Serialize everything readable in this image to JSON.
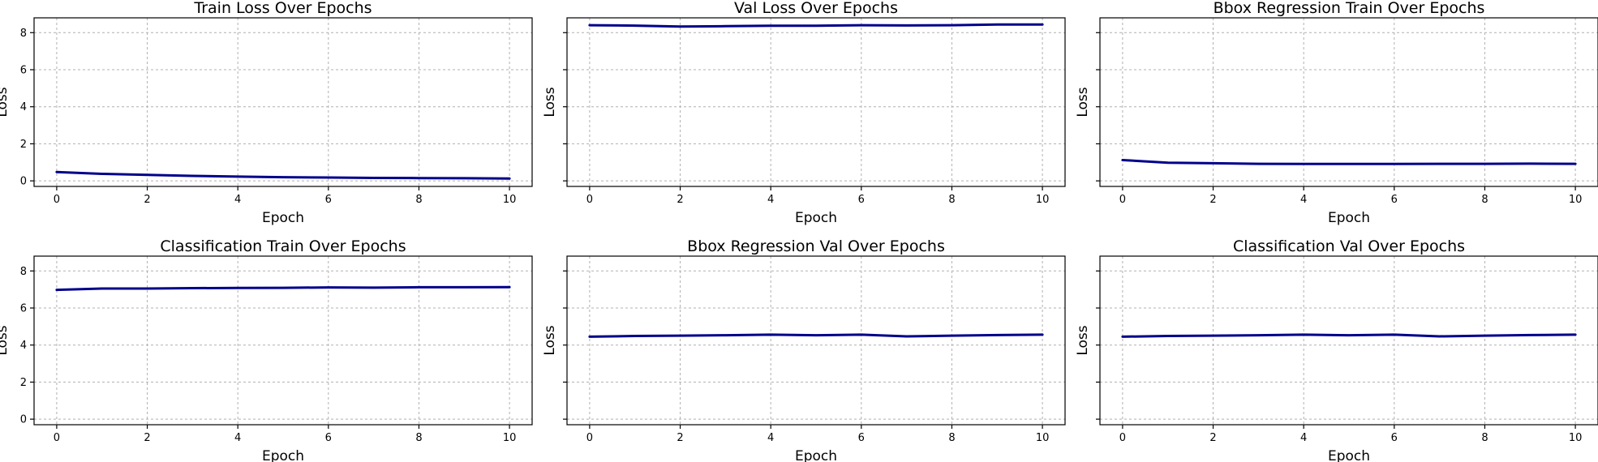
{
  "chart_data": [
    {
      "type": "line",
      "title": "Train Loss Over Epochs",
      "xlabel": "Epoch",
      "ylabel": "Loss",
      "xlim": [
        -0.5,
        10.5
      ],
      "ylim": [
        -0.3,
        8.8
      ],
      "xticks": [
        0,
        2,
        4,
        6,
        8,
        10
      ],
      "yticks": [
        0,
        2,
        4,
        6,
        8
      ],
      "show_ytick_labels": true,
      "grid": true,
      "x": [
        0,
        1,
        2,
        3,
        4,
        5,
        6,
        7,
        8,
        9,
        10
      ],
      "series": [
        {
          "color": "#00008b",
          "values": [
            0.48,
            0.38,
            0.32,
            0.27,
            0.23,
            0.2,
            0.18,
            0.16,
            0.15,
            0.14,
            0.13
          ]
        }
      ]
    },
    {
      "type": "line",
      "title": "Val Loss Over Epochs",
      "xlabel": "Epoch",
      "ylabel": "Loss",
      "xlim": [
        -0.5,
        10.5
      ],
      "ylim": [
        -0.3,
        8.8
      ],
      "xticks": [
        0,
        2,
        4,
        6,
        8,
        10
      ],
      "yticks": [
        0,
        2,
        4,
        6,
        8
      ],
      "show_ytick_labels": false,
      "grid": true,
      "x": [
        0,
        1,
        2,
        3,
        4,
        5,
        6,
        7,
        8,
        9,
        10
      ],
      "series": [
        {
          "color": "#00008b",
          "values": [
            8.4,
            8.38,
            8.33,
            8.35,
            8.37,
            8.37,
            8.4,
            8.39,
            8.4,
            8.44,
            8.44
          ]
        }
      ]
    },
    {
      "type": "line",
      "title": "Bbox Regression Train Over Epochs",
      "xlabel": "Epoch",
      "ylabel": "Loss",
      "xlim": [
        -0.5,
        10.5
      ],
      "ylim": [
        -0.3,
        8.8
      ],
      "xticks": [
        0,
        2,
        4,
        6,
        8,
        10
      ],
      "yticks": [
        0,
        2,
        4,
        6,
        8
      ],
      "show_ytick_labels": false,
      "grid": true,
      "x": [
        0,
        1,
        2,
        3,
        4,
        5,
        6,
        7,
        8,
        9,
        10
      ],
      "series": [
        {
          "color": "#00008b",
          "values": [
            1.12,
            0.98,
            0.95,
            0.92,
            0.91,
            0.91,
            0.91,
            0.92,
            0.92,
            0.93,
            0.92
          ]
        }
      ]
    },
    {
      "type": "line",
      "title": "Classification Train Over Epochs",
      "xlabel": "Epoch",
      "ylabel": "Loss",
      "xlim": [
        -0.5,
        10.5
      ],
      "ylim": [
        -0.3,
        8.8
      ],
      "xticks": [
        0,
        2,
        4,
        6,
        8,
        10
      ],
      "yticks": [
        0,
        2,
        4,
        6,
        8
      ],
      "show_ytick_labels": true,
      "grid": true,
      "x": [
        0,
        1,
        2,
        3,
        4,
        5,
        6,
        7,
        8,
        9,
        10
      ],
      "series": [
        {
          "color": "#00008b",
          "values": [
            6.98,
            7.05,
            7.05,
            7.07,
            7.08,
            7.09,
            7.11,
            7.1,
            7.12,
            7.12,
            7.13
          ]
        }
      ]
    },
    {
      "type": "line",
      "title": "Bbox Regression Val Over Epochs",
      "xlabel": "Epoch",
      "ylabel": "Loss",
      "xlim": [
        -0.5,
        10.5
      ],
      "ylim": [
        -0.3,
        8.8
      ],
      "xticks": [
        0,
        2,
        4,
        6,
        8,
        10
      ],
      "yticks": [
        0,
        2,
        4,
        6,
        8
      ],
      "show_ytick_labels": false,
      "grid": true,
      "x": [
        0,
        1,
        2,
        3,
        4,
        5,
        6,
        7,
        8,
        9,
        10
      ],
      "series": [
        {
          "color": "#00008b",
          "values": [
            4.45,
            4.49,
            4.51,
            4.53,
            4.56,
            4.53,
            4.56,
            4.47,
            4.51,
            4.54,
            4.56
          ]
        }
      ]
    },
    {
      "type": "line",
      "title": "Classification Val Over Epochs",
      "xlabel": "Epoch",
      "ylabel": "Loss",
      "xlim": [
        -0.5,
        10.5
      ],
      "ylim": [
        -0.3,
        8.8
      ],
      "xticks": [
        0,
        2,
        4,
        6,
        8,
        10
      ],
      "yticks": [
        0,
        2,
        4,
        6,
        8
      ],
      "show_ytick_labels": false,
      "grid": true,
      "x": [
        0,
        1,
        2,
        3,
        4,
        5,
        6,
        7,
        8,
        9,
        10
      ],
      "series": [
        {
          "color": "#00008b",
          "values": [
            4.45,
            4.49,
            4.51,
            4.53,
            4.56,
            4.53,
            4.56,
            4.47,
            4.51,
            4.54,
            4.56
          ]
        }
      ]
    }
  ]
}
